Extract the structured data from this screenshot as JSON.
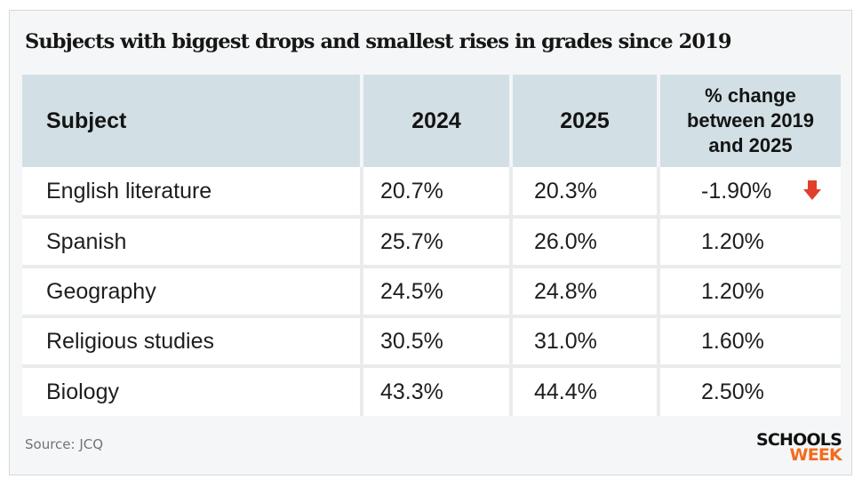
{
  "colors": {
    "header_bg": "#d2e0e5",
    "card_bg": "#f5f6f7",
    "drop_arrow": "#e0402b",
    "logo_week": "#f26b1d"
  },
  "chart_data": {
    "type": "table",
    "title": "Subjects with biggest drops and smallest rises in grades since 2019",
    "columns": [
      "Subject",
      "2024",
      "2025",
      "% change between 2019 and 2025"
    ],
    "rows": [
      [
        "English literature",
        "20.7%",
        "20.3%",
        "-1.90%"
      ],
      [
        "Spanish",
        "25.7%",
        "26.0%",
        "1.20%"
      ],
      [
        "Geography",
        "24.5%",
        "24.8%",
        "1.20%"
      ],
      [
        "Religious studies",
        "30.5%",
        "31.0%",
        "1.60%"
      ],
      [
        "Biology",
        "43.3%",
        "44.4%",
        "2.50%"
      ]
    ],
    "indicators": [
      {
        "row": "English literature",
        "column": "% change between 2019 and 2025",
        "icon": "down-arrow-icon"
      }
    ]
  },
  "footer": {
    "source": "Source: JCQ",
    "logo_line1": "SCHOOLS",
    "logo_line2": "WEEK"
  }
}
